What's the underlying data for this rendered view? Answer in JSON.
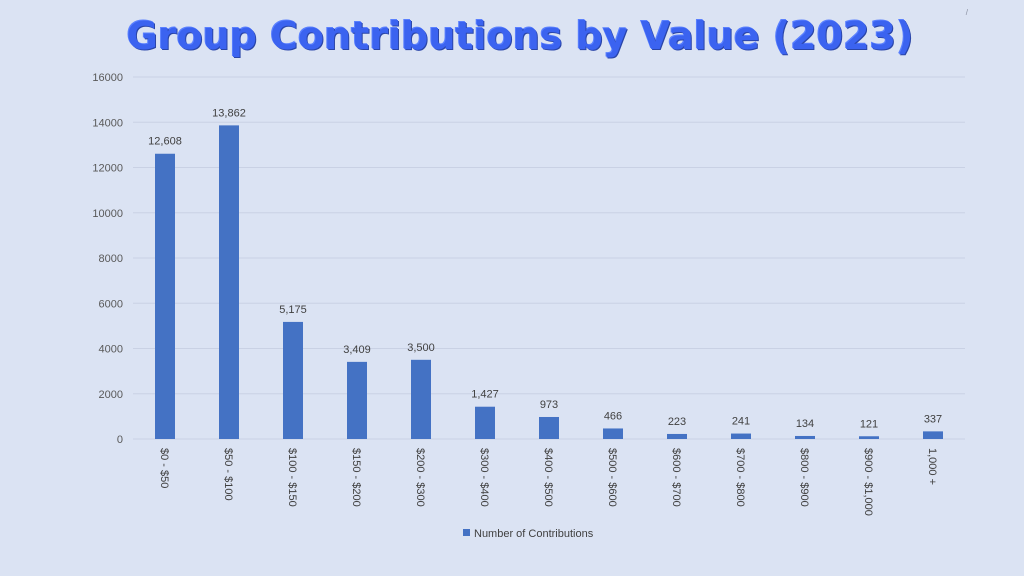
{
  "title": "Group Contributions by Value (2023)",
  "corner_mark": "/",
  "colors": {
    "bar": "#4472c4",
    "title": "#3b63f0",
    "grid": "#c9d1e4",
    "background": "#dbe3f3"
  },
  "chart_data": {
    "type": "bar",
    "categories": [
      "$0 - $50",
      "$50 - $100",
      "$100 - $150",
      "$150 - $200",
      "$200 - $300",
      "$300 - $400",
      "$400 - $500",
      "$500 - $600",
      "$600 - $700",
      "$700 - $800",
      "$800 - $900",
      "$900 - $1,000",
      "1,000 +"
    ],
    "series": [
      {
        "name": "Number of Contributions",
        "values": [
          12608,
          13862,
          5175,
          3409,
          3500,
          1427,
          973,
          466,
          223,
          241,
          134,
          121,
          337
        ],
        "labels": [
          "12,608",
          "13,862",
          "5,175",
          "3,409",
          "3,500",
          "1,427",
          "973",
          "466",
          "223",
          "241",
          "134",
          "121",
          "337"
        ]
      }
    ],
    "ylim": [
      0,
      16000
    ],
    "yticks": [
      0,
      2000,
      4000,
      6000,
      8000,
      10000,
      12000,
      14000,
      16000
    ],
    "grid": true,
    "legend": "bottom"
  }
}
